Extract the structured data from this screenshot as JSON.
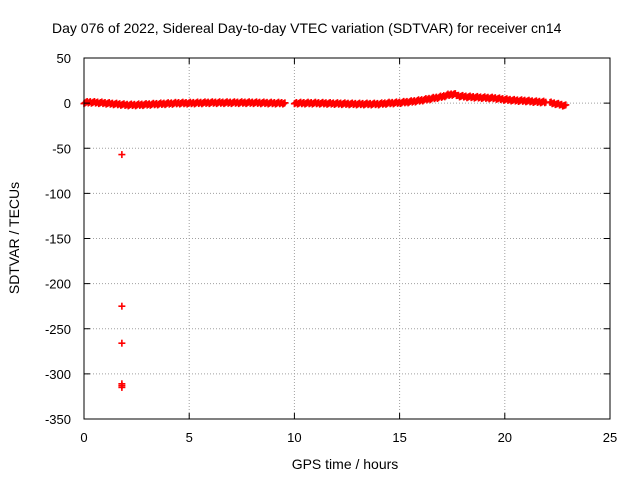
{
  "chart_data": {
    "type": "scatter",
    "title": "Day 076 of 2022, Sidereal Day-to-day VTEC variation (SDTVAR) for receiver cn14",
    "xlabel": "GPS time / hours",
    "ylabel": "SDTVAR / TECUs",
    "xlim": [
      0,
      25
    ],
    "ylim": [
      -350,
      50
    ],
    "xticks": [
      0,
      5,
      10,
      15,
      20,
      25
    ],
    "yticks": [
      50,
      0,
      -50,
      -100,
      -150,
      -200,
      -250,
      -300,
      -350
    ],
    "x_tick_labels": [
      "0",
      "5",
      "10",
      "15",
      "20",
      "25"
    ],
    "y_tick_labels": [
      "50",
      "0",
      "-50",
      "-100",
      "-150",
      "-200",
      "-250",
      "-300",
      "-350"
    ],
    "grid": true,
    "marker": "plus",
    "series": [
      {
        "name": "SDTVAR",
        "color": "#ff0000",
        "curve": [
          [
            0.0,
            0.5
          ],
          [
            0.3,
            1
          ],
          [
            0.7,
            0.5
          ],
          [
            1.0,
            0
          ],
          [
            1.5,
            -1
          ],
          [
            1.8,
            -1.5
          ],
          [
            2.0,
            -2
          ],
          [
            2.5,
            -2
          ],
          [
            3.0,
            -1.5
          ],
          [
            3.5,
            -1
          ],
          [
            4.0,
            -0.5
          ],
          [
            4.5,
            0
          ],
          [
            5.0,
            0
          ],
          [
            6.0,
            0.5
          ],
          [
            7.0,
            0.5
          ],
          [
            8.0,
            0.5
          ],
          [
            9.0,
            0
          ],
          [
            9.6,
            0
          ],
          [
            10.0,
            0
          ],
          [
            11.0,
            0
          ],
          [
            12.0,
            -0.5
          ],
          [
            13.0,
            -1
          ],
          [
            14.0,
            -1
          ],
          [
            14.5,
            0
          ],
          [
            15.0,
            0.5
          ],
          [
            15.5,
            1.5
          ],
          [
            16.0,
            3
          ],
          [
            16.5,
            5
          ],
          [
            17.0,
            7
          ],
          [
            17.3,
            9
          ],
          [
            17.6,
            10
          ],
          [
            17.8,
            8
          ],
          [
            18.2,
            7
          ],
          [
            18.6,
            6.5
          ],
          [
            19.0,
            6
          ],
          [
            19.5,
            5.5
          ],
          [
            20.0,
            4
          ],
          [
            20.5,
            3
          ],
          [
            21.0,
            2.5
          ],
          [
            21.5,
            1.5
          ],
          [
            22.0,
            1
          ],
          [
            22.5,
            -1
          ],
          [
            22.9,
            -3
          ]
        ],
        "gaps": [
          [
            9.6,
            10.0
          ],
          [
            22.0,
            22.15
          ]
        ],
        "outliers": [
          {
            "x": 1.8,
            "y": -57
          },
          {
            "x": 1.8,
            "y": -225
          },
          {
            "x": 1.8,
            "y": -266
          },
          {
            "x": 1.8,
            "y": -311
          },
          {
            "x": 1.8,
            "y": -313
          },
          {
            "x": 1.8,
            "y": -315
          }
        ]
      }
    ]
  }
}
